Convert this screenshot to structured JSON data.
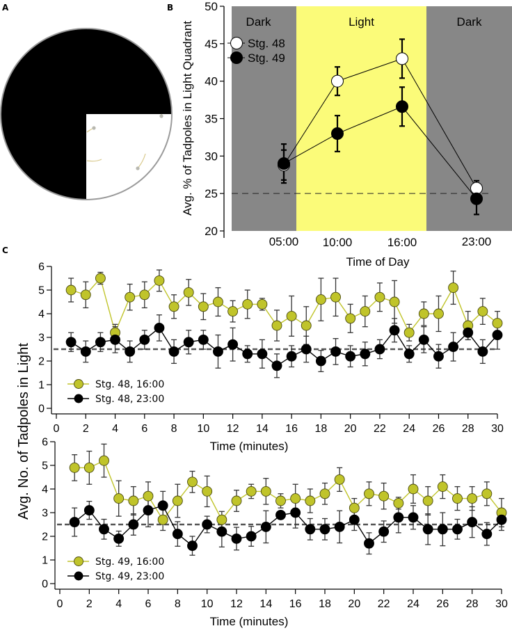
{
  "panels": {
    "A": {
      "label": "A",
      "description": "Arena schematic: circular dish with three dark quadrants and one light quadrant (bottom-right) containing tadpoles",
      "colors": {
        "dark": "#000000",
        "light": "#ffffff",
        "rim": "#9a9a9a",
        "tadpole": "#d8c88a"
      }
    },
    "B": {
      "label": "B"
    },
    "C": {
      "label": "C"
    }
  },
  "chart_data": [
    {
      "id": "B",
      "type": "line",
      "title": "",
      "xlabel": "Time of Day",
      "ylabel": "Avg. % of Tadpoles in Light Quadrant",
      "categories": [
        "05:00",
        "10:00",
        "16:00",
        "23:00"
      ],
      "ylim": [
        20,
        50
      ],
      "yticks": [
        20,
        25,
        30,
        35,
        40,
        45,
        50
      ],
      "grid": false,
      "reference_line": {
        "y": 25,
        "style": "dashed"
      },
      "background_regions": [
        {
          "label": "Dark",
          "from": "start",
          "to": "between 05:00 and 10:00",
          "color": "#878787"
        },
        {
          "label": "Light",
          "from": "between 05:00 and 10:00",
          "to": "between 16:00 and 23:00",
          "color": "#fbfb79"
        },
        {
          "label": "Dark",
          "from": "between 16:00 and 23:00",
          "to": "end",
          "color": "#878787"
        }
      ],
      "legend": {
        "placement": "top-left"
      },
      "series": [
        {
          "name": "Stg. 48",
          "marker": "open-circle",
          "color": "#ffffff",
          "values": [
            28.8,
            40.0,
            43.0,
            25.7
          ],
          "error": [
            2.0,
            1.9,
            2.6,
            1.0
          ]
        },
        {
          "name": "Stg. 49",
          "marker": "filled-circle",
          "color": "#000000",
          "values": [
            29.0,
            33.0,
            36.6,
            24.3
          ],
          "error": [
            2.6,
            2.4,
            2.6,
            2.1
          ]
        }
      ]
    },
    {
      "id": "C-top",
      "type": "line",
      "title": "",
      "xlabel": "Time (minutes)",
      "ylabel": "Avg. No. of Tadpoles in Light",
      "x": [
        1,
        2,
        3,
        4,
        5,
        6,
        7,
        8,
        9,
        10,
        11,
        12,
        13,
        14,
        15,
        16,
        17,
        18,
        19,
        20,
        21,
        22,
        23,
        24,
        25,
        26,
        27,
        28,
        29,
        30
      ],
      "xlim": [
        0,
        30
      ],
      "xticks": [
        0,
        2,
        4,
        6,
        8,
        10,
        12,
        14,
        16,
        18,
        20,
        22,
        24,
        26,
        28,
        30
      ],
      "ylim": [
        0,
        6
      ],
      "yticks": [
        0,
        1,
        2,
        3,
        4,
        5,
        6
      ],
      "grid": false,
      "reference_line": {
        "y": 2.5,
        "style": "dashed"
      },
      "legend": {
        "placement": "bottom-left"
      },
      "series": [
        {
          "name": "Stg. 48, 16:00",
          "color": "#c0c42a",
          "line_color": "#c0c42a",
          "values": [
            5.0,
            4.8,
            5.5,
            3.2,
            4.7,
            4.8,
            5.4,
            4.3,
            4.9,
            4.3,
            4.5,
            4.1,
            4.4,
            4.4,
            3.5,
            3.9,
            3.5,
            4.6,
            4.7,
            3.8,
            4.1,
            4.7,
            4.5,
            3.2,
            4.0,
            4.0,
            5.1,
            3.5,
            4.1,
            3.6
          ],
          "error": [
            0.5,
            0.55,
            0.25,
            0.35,
            0.55,
            0.55,
            0.45,
            0.5,
            0.55,
            0.55,
            0.6,
            0.45,
            0.6,
            0.25,
            0.65,
            0.85,
            0.8,
            0.9,
            0.8,
            0.6,
            0.65,
            0.6,
            0.9,
            0.35,
            0.5,
            0.75,
            0.7,
            0.6,
            0.55,
            0.5
          ]
        },
        {
          "name": "Stg. 48, 23:00",
          "color": "#000000",
          "line_color": "#000000",
          "values": [
            2.8,
            2.4,
            2.8,
            2.9,
            2.4,
            2.9,
            3.4,
            2.4,
            2.8,
            2.9,
            2.4,
            2.7,
            2.3,
            2.3,
            1.8,
            2.2,
            2.5,
            2.0,
            2.4,
            2.2,
            2.3,
            2.5,
            3.3,
            2.3,
            2.9,
            2.2,
            2.6,
            3.2,
            2.4,
            3.1
          ],
          "error": [
            0.4,
            0.45,
            0.4,
            0.55,
            0.45,
            0.4,
            0.55,
            0.5,
            0.5,
            0.4,
            0.7,
            0.7,
            0.35,
            0.6,
            0.5,
            0.45,
            0.55,
            0.45,
            0.55,
            0.45,
            0.5,
            0.4,
            0.5,
            0.35,
            0.55,
            0.5,
            0.6,
            0.3,
            0.5,
            0.6
          ]
        }
      ]
    },
    {
      "id": "C-bottom",
      "type": "line",
      "title": "",
      "xlabel": "Time (minutes)",
      "ylabel": "Avg. No. of Tadpoles in Light",
      "x": [
        1,
        2,
        3,
        4,
        5,
        6,
        7,
        8,
        9,
        10,
        11,
        12,
        13,
        14,
        15,
        16,
        17,
        18,
        19,
        20,
        21,
        22,
        23,
        24,
        25,
        26,
        27,
        28,
        29,
        30
      ],
      "xlim": [
        0,
        30
      ],
      "xticks": [
        0,
        2,
        4,
        6,
        8,
        10,
        12,
        14,
        16,
        18,
        20,
        22,
        24,
        26,
        28,
        30
      ],
      "ylim": [
        0,
        6
      ],
      "yticks": [
        0,
        1,
        2,
        3,
        4,
        5,
        6
      ],
      "grid": false,
      "reference_line": {
        "y": 2.5,
        "style": "dashed"
      },
      "legend": {
        "placement": "bottom-left"
      },
      "series": [
        {
          "name": "Stg. 49, 16:00",
          "color": "#c0c42a",
          "line_color": "#c0c42a",
          "values": [
            4.9,
            4.9,
            5.2,
            3.6,
            3.5,
            3.7,
            2.7,
            3.5,
            4.3,
            3.9,
            2.7,
            3.5,
            3.9,
            3.9,
            3.5,
            3.6,
            3.5,
            3.8,
            4.4,
            3.2,
            3.8,
            3.7,
            3.4,
            4.0,
            3.5,
            4.1,
            3.6,
            3.6,
            3.8,
            3.0
          ],
          "error": [
            0.55,
            0.7,
            0.7,
            0.75,
            0.6,
            0.6,
            0.45,
            0.7,
            0.45,
            0.65,
            0.35,
            0.45,
            0.3,
            0.55,
            0.3,
            0.6,
            0.5,
            0.45,
            0.5,
            0.4,
            0.5,
            0.55,
            0.25,
            0.6,
            0.6,
            0.5,
            0.5,
            0.5,
            0.5,
            0.6
          ]
        },
        {
          "name": "Stg. 49, 23:00",
          "color": "#000000",
          "line_color": "#000000",
          "values": [
            2.6,
            3.1,
            2.3,
            1.9,
            2.5,
            3.1,
            3.3,
            2.1,
            1.6,
            2.5,
            2.2,
            1.9,
            2.0,
            2.4,
            2.9,
            3.0,
            2.3,
            2.3,
            2.4,
            2.7,
            1.7,
            2.2,
            2.8,
            2.8,
            2.3,
            2.3,
            2.3,
            2.6,
            2.1,
            2.7
          ],
          "error": [
            0.6,
            0.38,
            0.42,
            0.32,
            0.45,
            0.7,
            0.6,
            0.52,
            0.4,
            0.35,
            0.65,
            0.48,
            0.42,
            0.68,
            0.15,
            0.65,
            0.45,
            0.45,
            0.68,
            0.45,
            0.45,
            0.45,
            0.65,
            0.5,
            0.65,
            0.7,
            0.42,
            0.65,
            0.48,
            0.45
          ]
        }
      ]
    }
  ]
}
